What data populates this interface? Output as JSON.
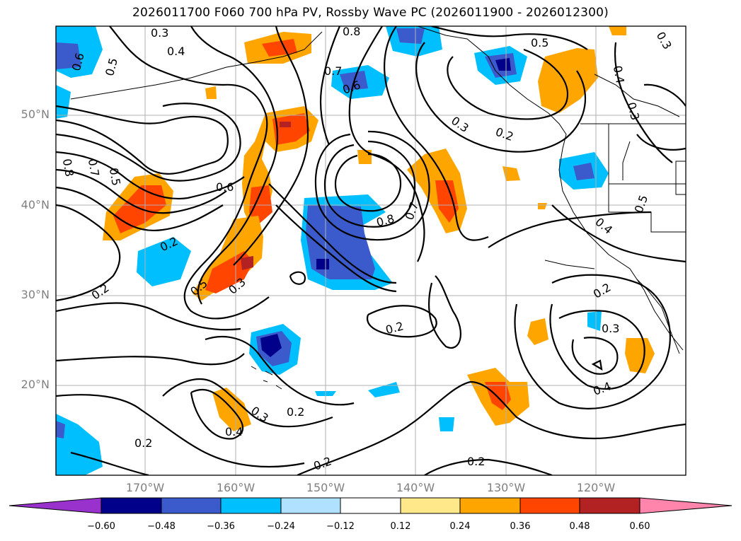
{
  "title": "2026011700 F060 700 hPa PV, Rossby Wave PC (2026011900 - 2026012300)",
  "map": {
    "region": "North Pacific / western North America",
    "lon_range": [
      -180,
      -110
    ],
    "lat_range": [
      10,
      60
    ],
    "lat_labels": [
      "20°N",
      "30°N",
      "40°N",
      "50°N"
    ],
    "lon_labels": [
      "170°W",
      "160°W",
      "150°W",
      "140°W",
      "130°W",
      "120°W"
    ],
    "contour_labels": [
      "0.8",
      "0.5",
      "0.3",
      "0.4",
      "0.6",
      "0.7",
      "0.6",
      "0.5",
      "0.3",
      "0.2",
      "0.3",
      "0.4",
      "0.3",
      "0.8",
      "0.7",
      "0.5",
      "0.6",
      "0.2",
      "0.2",
      "0.3",
      "0.5",
      "0.5",
      "0.8",
      "0.7",
      "0.4",
      "0.2",
      "0.2",
      "0.3",
      "0.4",
      "0.3",
      "0.2",
      "0.4",
      "0.2",
      "0.2",
      "0.2"
    ]
  },
  "colorbar": {
    "ticks": [
      "−0.60",
      "−0.48",
      "−0.36",
      "−0.24",
      "−0.12",
      "0.12",
      "0.24",
      "0.36",
      "0.48",
      "0.60"
    ],
    "colors": [
      "#9932cc",
      "#00008b",
      "#3b5bcc",
      "#00bfff",
      "#b0e2ff",
      "#ffffff",
      "#ffe88a",
      "#ffa500",
      "#ff4500",
      "#b22222",
      "#ff85ac"
    ]
  },
  "chart_data": {
    "type": "contour-map",
    "title": "2026011700 F060 700 hPa PV, Rossby Wave PC (2026011900 - 2026012300)",
    "field_contours": "700 hPa PV (PVU), labeled 0.2-0.8",
    "shading": "Rossby Wave PC, levels -0.60 to 0.60 by 0.12",
    "levels": [
      -0.6,
      -0.48,
      -0.36,
      -0.24,
      -0.12,
      0.12,
      0.24,
      0.36,
      0.48,
      0.6
    ]
  }
}
